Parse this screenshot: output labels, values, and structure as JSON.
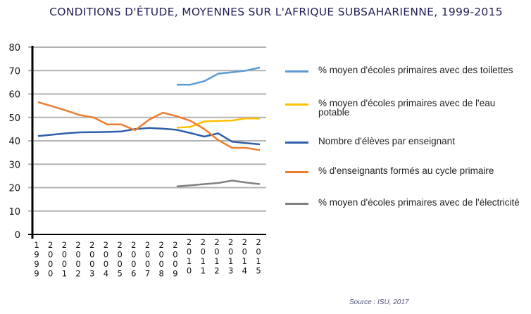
{
  "chart_data": {
    "type": "line",
    "title": "CONDITIONS D'ÉTUDE, MOYENNES SUR L'AFRIQUE SUBSAHARIENNE, 1999-2015",
    "xlabel": "",
    "ylabel": "",
    "ylim": [
      0,
      80
    ],
    "yticks": [
      0,
      10,
      20,
      30,
      40,
      50,
      60,
      70,
      80
    ],
    "grid": true,
    "legend_position": "right",
    "x": [
      "1999",
      "2000",
      "2001",
      "2002",
      "2003",
      "2004",
      "2005",
      "2006",
      "2007",
      "2008",
      "2009",
      "2010",
      "2011",
      "2012",
      "2013",
      "2014",
      "2015"
    ],
    "series": [
      {
        "name": "% moyen d'écoles primaires avec des toilettes",
        "color": "#5b9bd5",
        "values": [
          null,
          null,
          null,
          null,
          null,
          null,
          null,
          null,
          null,
          null,
          64,
          64,
          65.5,
          68.7,
          69.3,
          70,
          71.3
        ]
      },
      {
        "name": "% moyen d'écoles primaires avec de l'eau potable",
        "color": "#ffc000",
        "values": [
          null,
          null,
          null,
          null,
          null,
          null,
          null,
          null,
          null,
          null,
          45.6,
          46,
          48.3,
          48.5,
          48.7,
          49.6,
          49.5
        ]
      },
      {
        "name": "Nombre d'élèves par enseignant",
        "color": "#2e5fa8",
        "values": [
          42,
          42.6,
          43.2,
          43.6,
          43.7,
          43.8,
          44,
          45,
          45.5,
          45.2,
          44.7,
          43.3,
          41.8,
          43.2,
          39.6,
          39,
          38.5
        ]
      },
      {
        "name": "% d'enseignants formés au cycle primaire",
        "color": "#ed7d31",
        "values": [
          56.5,
          54.8,
          53,
          51,
          50,
          47,
          47,
          44.5,
          49,
          52,
          50.5,
          48.5,
          45,
          40.3,
          37,
          37,
          36
        ]
      },
      {
        "name": "% moyen d'écoles primaires avec de l'électricité",
        "color": "#808080",
        "values": [
          null,
          null,
          null,
          null,
          null,
          null,
          null,
          null,
          null,
          null,
          20.5,
          21,
          21.5,
          22,
          23,
          22.2,
          21.5
        ]
      }
    ],
    "source": "Source : ISU, 2017"
  }
}
